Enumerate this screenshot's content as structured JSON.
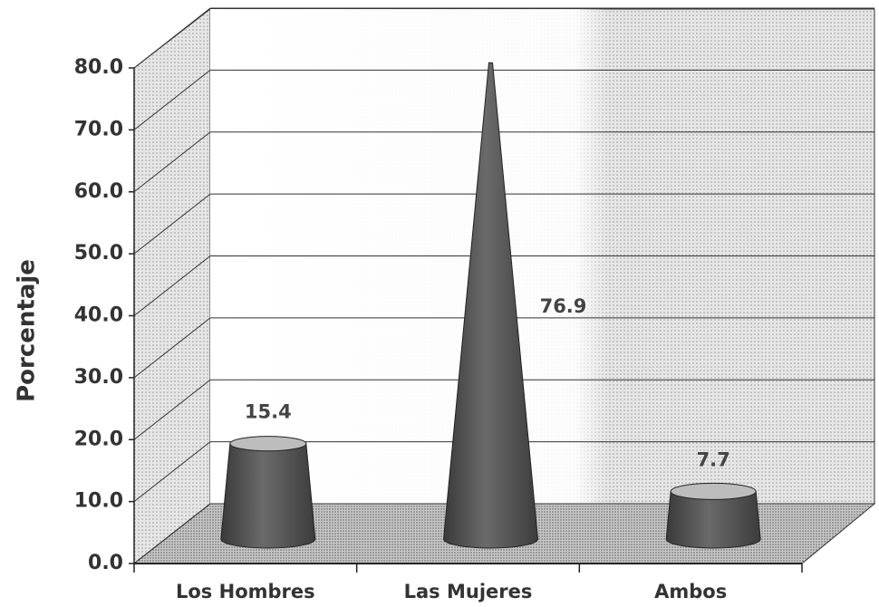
{
  "chart_data": {
    "type": "cone",
    "y_label": "Porcentaje",
    "categories": [
      "Los Hombres",
      "Las Mujeres",
      "Ambos"
    ],
    "values": [
      15.4,
      76.9,
      7.7
    ],
    "color": "#5a5a5a",
    "ylim": [
      0,
      80
    ],
    "yticks": [
      {
        "value": 0,
        "label": "0.0"
      },
      {
        "value": 10,
        "label": "10.0"
      },
      {
        "value": 20,
        "label": "20.0"
      },
      {
        "value": 30,
        "label": "30.0"
      },
      {
        "value": 40,
        "label": "40.0"
      },
      {
        "value": 50,
        "label": "50.0"
      },
      {
        "value": 60,
        "label": "60.0"
      },
      {
        "value": 70,
        "label": "70.0"
      },
      {
        "value": 80,
        "label": "80.0"
      }
    ],
    "grid": true
  }
}
